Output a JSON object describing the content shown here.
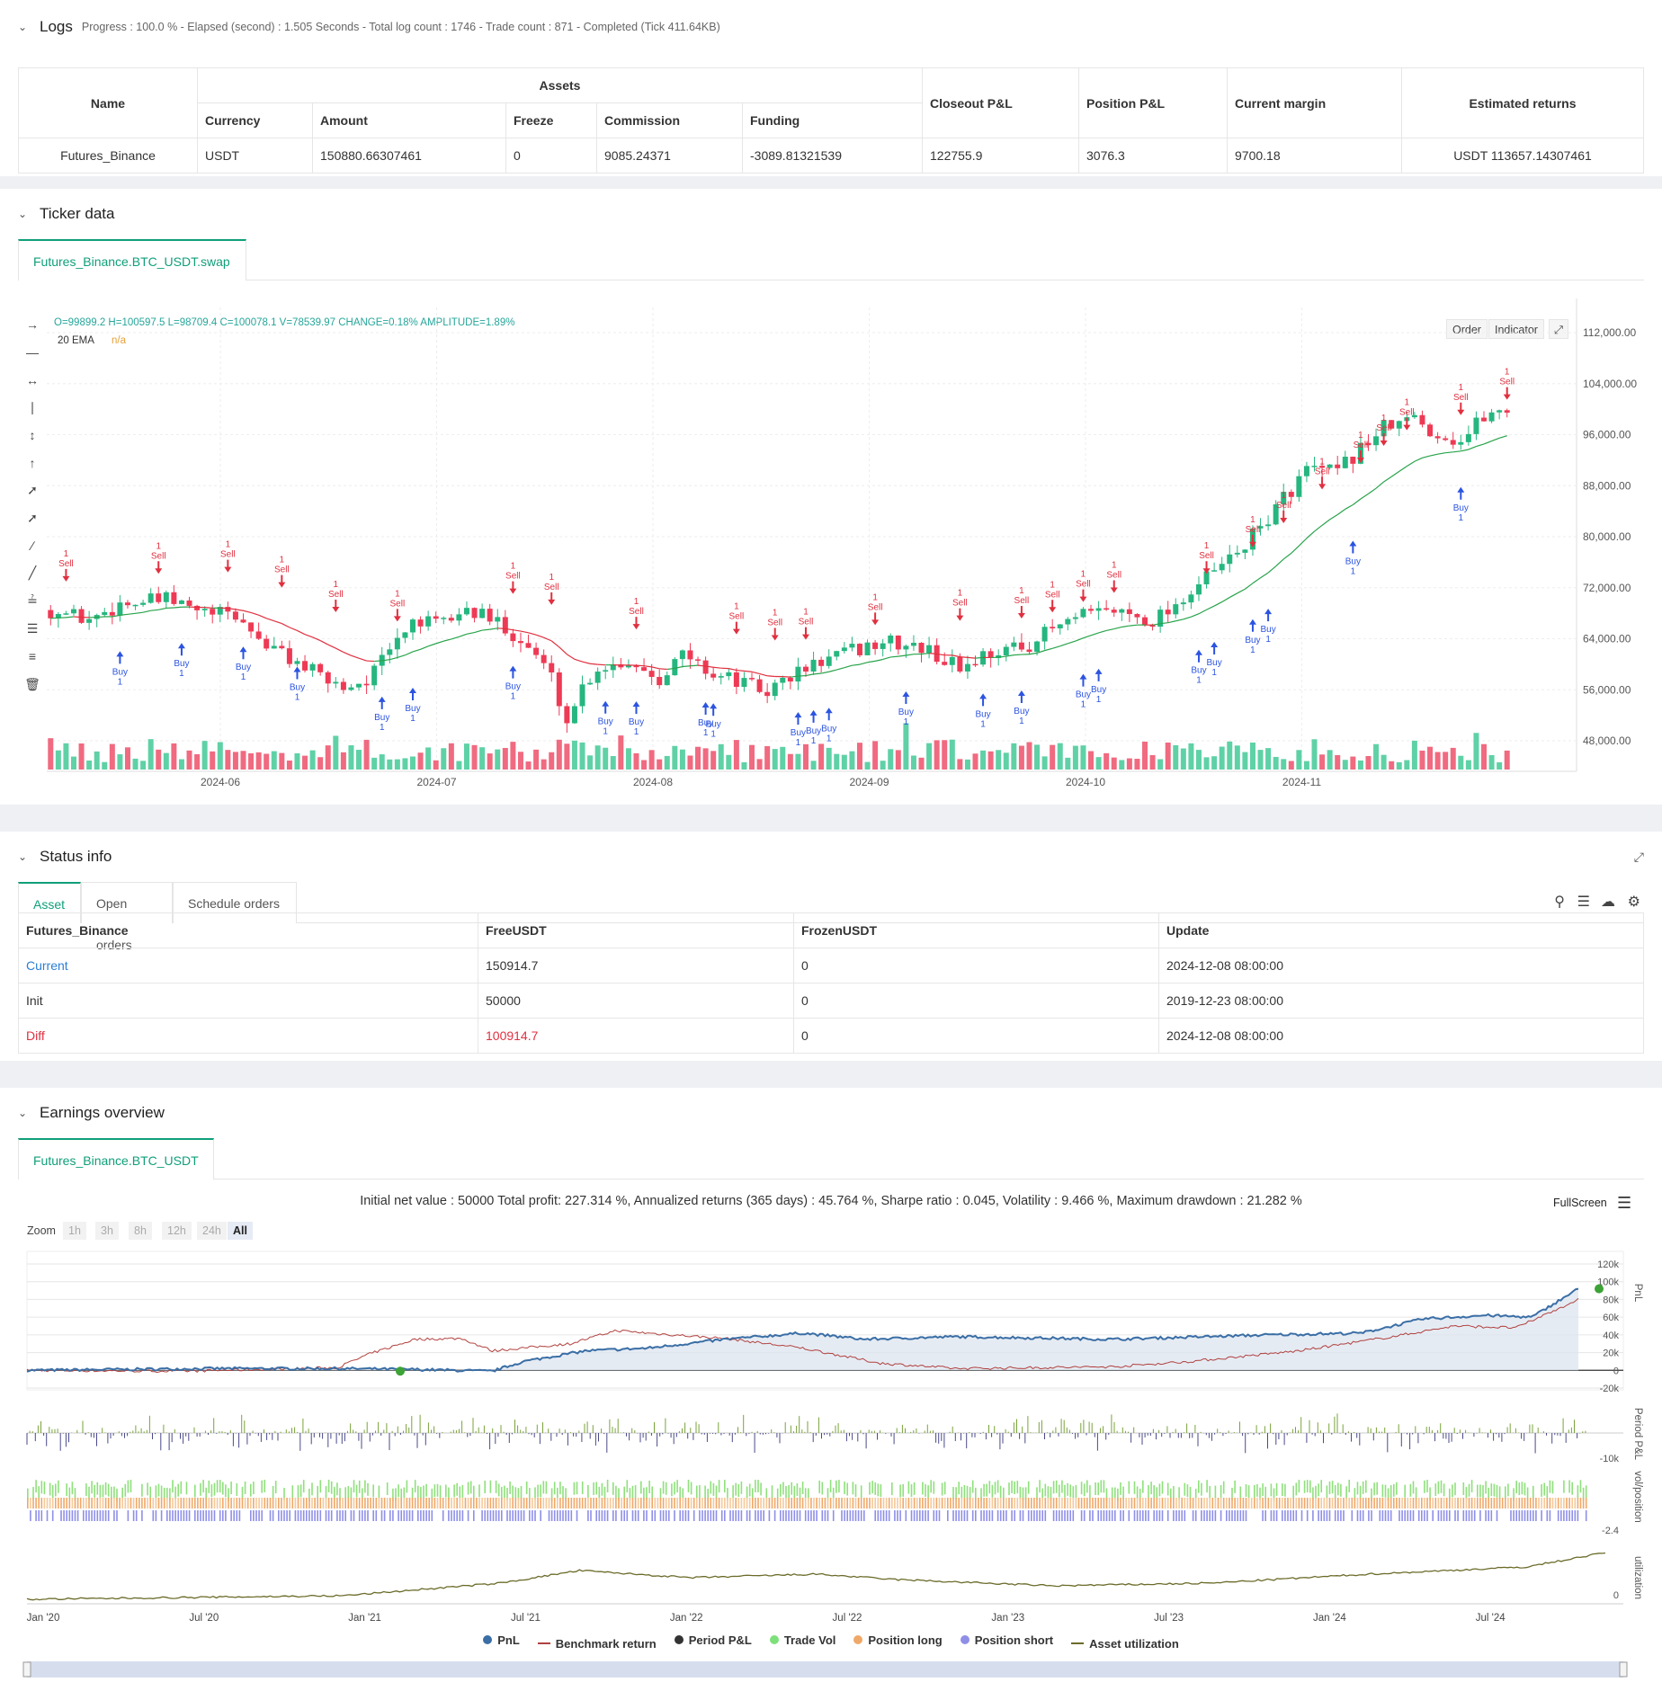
{
  "logs": {
    "title": "Logs",
    "summary": "Progress : 100.0 % - Elapsed (second) : 1.505  Seconds - Total log count : 1746 - Trade count : 871 - Completed (Tick 411.64KB)",
    "headers": {
      "name": "Name",
      "assets": "Assets",
      "currency": "Currency",
      "amount": "Amount",
      "freeze": "Freeze",
      "commission": "Commission",
      "funding": "Funding",
      "closeout": "Closeout P&L",
      "position": "Position P&L",
      "margin": "Current margin",
      "returns": "Estimated returns"
    },
    "row": {
      "name": "Futures_Binance",
      "currency": "USDT",
      "amount": "150880.66307461",
      "freeze": "0",
      "commission": "9085.24371",
      "funding": "-3089.81321539",
      "closeout": "122755.9",
      "position": "3076.3",
      "margin": "9700.18",
      "returns": "USDT 113657.14307461"
    }
  },
  "ticker": {
    "title": "Ticker data",
    "tab": "Futures_Binance.BTC_USDT.swap",
    "ohlc": "O=99899.2 H=100597.5 L=98709.4 C=100078.1 V=78539.97 CHANGE=0.18% AMPLITUDE=1.89%",
    "ema_label": "20 EMA",
    "ema_value": "n/a",
    "order_btn": "Order",
    "indicator_btn": "Indicator",
    "y_ticks": [
      "112,000.00",
      "104,000.00",
      "96,000.00",
      "88,000.00",
      "80,000.00",
      "72,000.00",
      "64,000.00",
      "56,000.00",
      "48,000.00"
    ],
    "x_ticks": [
      "2024-06",
      "2024-07",
      "2024-08",
      "2024-09",
      "2024-10",
      "2024-11"
    ],
    "buy_label": "Buy",
    "sell_label": "Sell",
    "qty_label": "1",
    "colors": {
      "up": "#26b67f",
      "down": "#ee3a55",
      "ema_up": "#27a34a",
      "ema_down": "#e0303f",
      "buy": "#2c54e0",
      "sell": "#e0303f"
    }
  },
  "status": {
    "title": "Status info",
    "tabs": [
      "Asset",
      "Open orders",
      "Schedule orders"
    ],
    "headers": [
      "Futures_Binance",
      "FreeUSDT",
      "FrozenUSDT",
      "Update"
    ],
    "rows": [
      [
        "Current",
        "150914.7",
        "0",
        "2024-12-08 08:00:00"
      ],
      [
        "Init",
        "50000",
        "0",
        "2019-12-23 08:00:00"
      ],
      [
        "Diff",
        "100914.7",
        "0",
        "2024-12-08 08:00:00"
      ]
    ]
  },
  "earnings": {
    "title": "Earnings overview",
    "tab": "Futures_Binance.BTC_USDT",
    "summary": "Initial net value : 50000  Total profit: 227.314 %, Annualized returns (365 days) : 45.764 %, Sharpe ratio : 0.045, Volatility : 9.466 %, Maximum drawdown : 21.282 %",
    "fullscreen": "FullScreen",
    "zoom_label": "Zoom",
    "zoom_options": [
      "1h",
      "3h",
      "8h",
      "12h",
      "24h",
      "All"
    ],
    "pnl_ticks": [
      "120k",
      "100k",
      "80k",
      "60k",
      "40k",
      "20k",
      "0",
      "-20k"
    ],
    "period_tick": "-10k",
    "vol_tick": "-2.4",
    "util_tick": "0",
    "axis_titles": [
      "PnL",
      "Period P&L",
      "vol/position",
      "utilization"
    ],
    "x_ticks": [
      "Jan '20",
      "Jul '20",
      "Jan '21",
      "Jul '21",
      "Jan '22",
      "Jul '22",
      "Jan '23",
      "Jul '23",
      "Jan '24",
      "Jul '24"
    ],
    "legend": [
      {
        "name": "PnL",
        "color": "#3a6ea5",
        "kind": "dot"
      },
      {
        "name": "Benchmark return",
        "color": "#b0413e",
        "kind": "line"
      },
      {
        "name": "Period P&L",
        "color": "#333333",
        "kind": "dot"
      },
      {
        "name": "Trade Vol",
        "color": "#7ee07a",
        "kind": "dot"
      },
      {
        "name": "Position long",
        "color": "#f0a868",
        "kind": "dot"
      },
      {
        "name": "Position short",
        "color": "#8f8fe8",
        "kind": "dot"
      },
      {
        "name": "Asset utilization",
        "color": "#6b6b2a",
        "kind": "line"
      }
    ]
  }
}
